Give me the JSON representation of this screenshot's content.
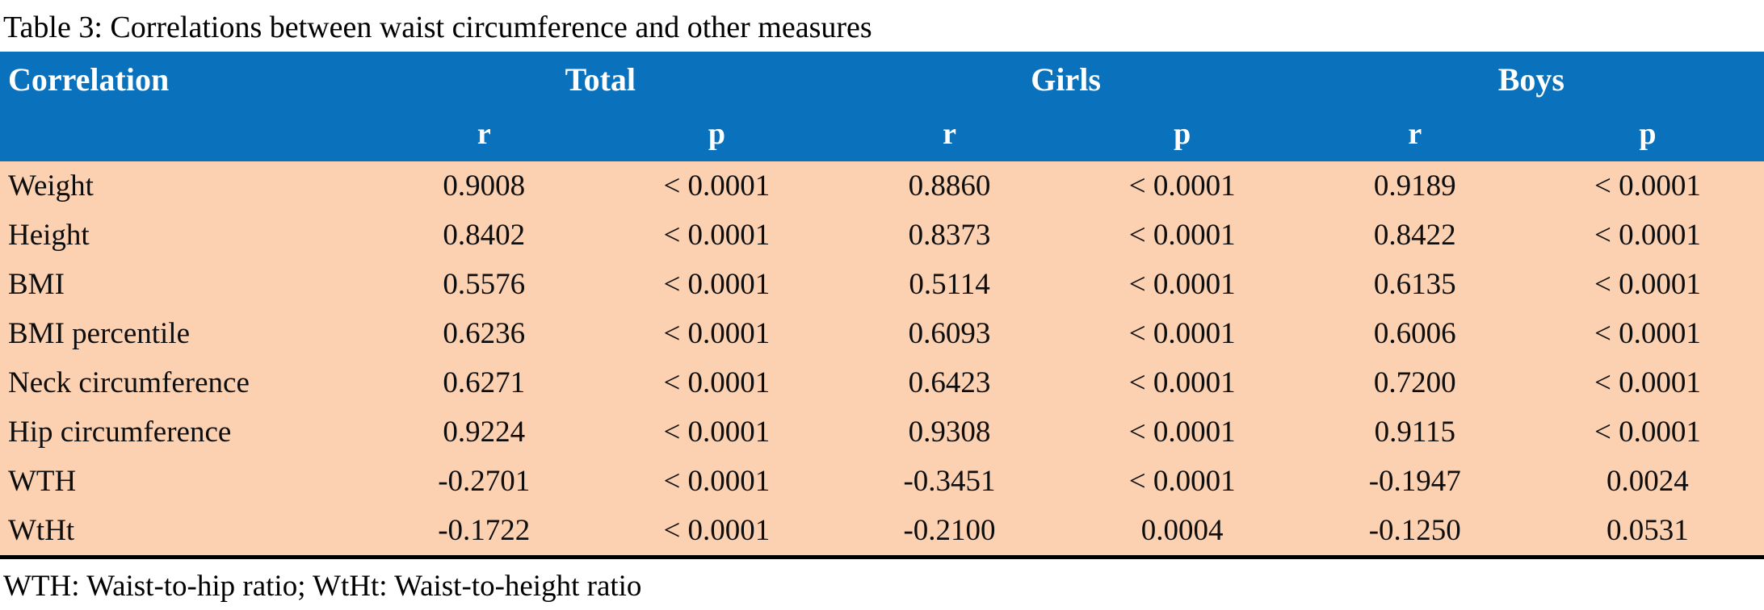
{
  "title": "Table 3: Correlations between waist circumference and other measures",
  "colors": {
    "header_bg": "#0a72bc",
    "header_text": "#ffffff",
    "row_bg": "#fbd1b1",
    "body_text": "#0d0d0d",
    "bottom_border": "#000000"
  },
  "table": {
    "corner_header": "Correlation",
    "groups": [
      {
        "label": "Total"
      },
      {
        "label": "Girls"
      },
      {
        "label": "Boys"
      }
    ],
    "subheaders": [
      "r",
      "p",
      "r",
      "p",
      "r",
      "p"
    ],
    "rows": [
      {
        "label": "Weight",
        "values": [
          "0.9008",
          "< 0.0001",
          "0.8860",
          "< 0.0001",
          "0.9189",
          "< 0.0001"
        ]
      },
      {
        "label": "Height",
        "values": [
          "0.8402",
          "< 0.0001",
          "0.8373",
          "< 0.0001",
          "0.8422",
          "< 0.0001"
        ]
      },
      {
        "label": "BMI",
        "values": [
          "0.5576",
          "< 0.0001",
          "0.5114",
          "< 0.0001",
          "0.6135",
          "< 0.0001"
        ]
      },
      {
        "label": "BMI percentile",
        "values": [
          "0.6236",
          "< 0.0001",
          "0.6093",
          "< 0.0001",
          "0.6006",
          "< 0.0001"
        ]
      },
      {
        "label": "Neck circumference",
        "values": [
          "0.6271",
          "< 0.0001",
          "0.6423",
          "< 0.0001",
          "0.7200",
          "< 0.0001"
        ]
      },
      {
        "label": "Hip circumference",
        "values": [
          "0.9224",
          "< 0.0001",
          "0.9308",
          "< 0.0001",
          "0.9115",
          "< 0.0001"
        ]
      },
      {
        "label": "WTH",
        "values": [
          "-0.2701",
          "< 0.0001",
          "-0.3451",
          "< 0.0001",
          "-0.1947",
          "0.0024"
        ]
      },
      {
        "label": "WtHt",
        "values": [
          "-0.1722",
          "< 0.0001",
          "-0.2100",
          "0.0004",
          "-0.1250",
          "0.0531"
        ]
      }
    ],
    "footnote": "WTH: Waist-to-hip ratio; WtHt: Waist-to-height ratio"
  }
}
